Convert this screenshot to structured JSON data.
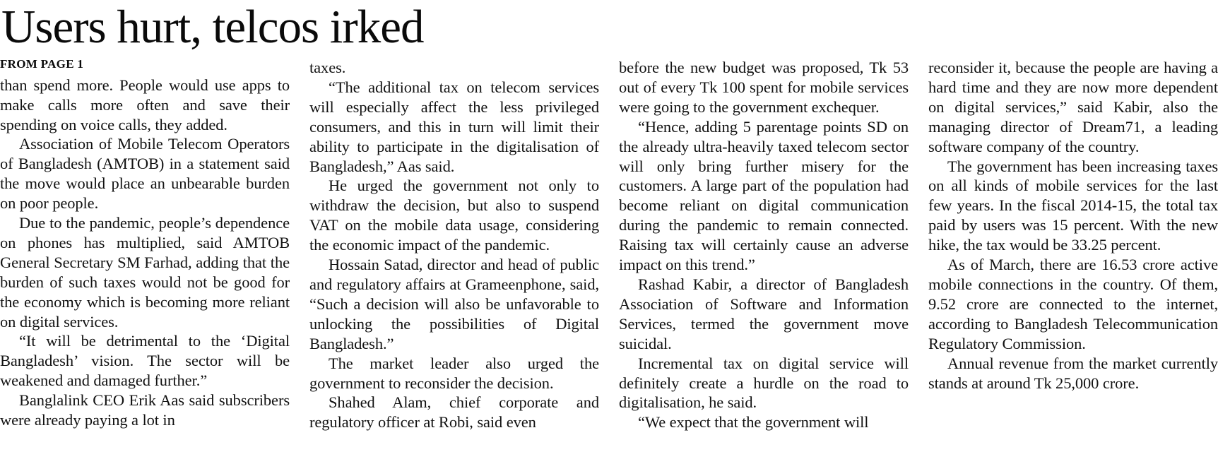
{
  "page": {
    "background_color": "#ffffff",
    "text_color": "#121212"
  },
  "article": {
    "headline": "Users hurt, telcos irked",
    "kicker": "FROM PAGE 1",
    "columns": [
      {
        "paragraphs": [
          {
            "continuation": true,
            "text": "than spend more. People would use apps to make calls more often and save their spending on voice calls, they added."
          },
          {
            "continuation": false,
            "text": "Association of Mobile Telecom Operators of Bangladesh (AMTOB) in a statement said the move would place an unbearable burden on poor people."
          },
          {
            "continuation": false,
            "text": "Due to the pandemic, people’s dependence on phones has multiplied, said AMTOB General Secretary SM Farhad, adding that the burden of such taxes would not be good for the economy which is becoming more reliant on digital services."
          },
          {
            "continuation": false,
            "text": "“It will be detrimental to the ‘Digital Bangladesh’ vision. The sector will be weakened and damaged further.”"
          },
          {
            "continuation": false,
            "text": "Banglalink CEO Erik Aas said subscribers were already paying a lot in"
          }
        ]
      },
      {
        "paragraphs": [
          {
            "continuation": true,
            "text": "taxes."
          },
          {
            "continuation": false,
            "text": "“The additional tax on telecom services will especially affect the less privileged consumers, and this in turn will limit their ability to participate in the digitalisation of Bangladesh,” Aas said."
          },
          {
            "continuation": false,
            "text": "He urged the government not only to withdraw the decision, but also to suspend VAT on the mobile data usage, considering the economic impact of the pandemic."
          },
          {
            "continuation": false,
            "text": "Hossain Satad, director and head of public and regulatory affairs at Grameenphone, said, “Such a decision will also be unfavorable to unlocking the possibilities of Digital Bangladesh.”"
          },
          {
            "continuation": false,
            "text": "The market leader also urged the government to reconsider the decision."
          },
          {
            "continuation": false,
            "text": "Shahed Alam, chief corporate and regulatory officer at Robi, said even"
          }
        ]
      },
      {
        "paragraphs": [
          {
            "continuation": true,
            "text": "before the new budget was proposed, Tk 53 out of every Tk 100 spent for mobile services were going to the government exchequer."
          },
          {
            "continuation": false,
            "text": "“Hence, adding 5 parentage points SD on the already ultra-heavily taxed telecom sector will only bring further misery for the customers. A large part of the population had become reliant on digital communication during the pandemic to remain connected. Raising tax will certainly cause an adverse impact on this trend.”"
          },
          {
            "continuation": false,
            "text": "Rashad Kabir, a director of Bangladesh Association of Software and Information Services, termed the government move suicidal."
          },
          {
            "continuation": false,
            "text": "Incremental tax on digital service will definitely create a hurdle on the road to digitalisation, he said."
          },
          {
            "continuation": false,
            "text": "“We expect that the government will"
          }
        ]
      },
      {
        "paragraphs": [
          {
            "continuation": true,
            "text": "reconsider it, because the people are having a hard time and they are now more dependent on digital services,” said Kabir, also the managing director of Dream71, a leading software company of the country."
          },
          {
            "continuation": false,
            "text": "The government has been increasing taxes on all kinds of mobile services for the last few years. In the fiscal 2014-15, the total tax paid by users was 15 percent. With the new hike, the tax would be 33.25 percent."
          },
          {
            "continuation": false,
            "text": "As of March, there are 16.53 crore active mobile connections in the country. Of them, 9.52 crore are connected to the internet, according to Bangladesh Telecommunication Regulatory Commission."
          },
          {
            "continuation": false,
            "text": "Annual revenue from the market currently stands at around Tk 25,000 crore."
          }
        ]
      }
    ]
  }
}
